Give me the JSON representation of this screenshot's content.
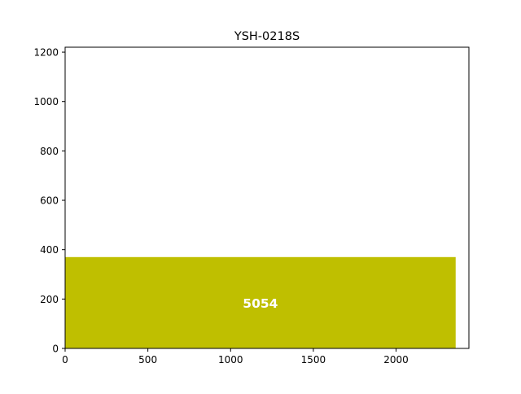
{
  "chart_data": {
    "type": "bar",
    "title": "YSH-0218S",
    "xlabel": "",
    "ylabel": "",
    "xlim": [
      0,
      2440
    ],
    "ylim": [
      0,
      1220
    ],
    "x_ticks": [
      0,
      500,
      1000,
      1500,
      2000
    ],
    "y_ticks": [
      0,
      200,
      400,
      600,
      800,
      1000,
      1200
    ],
    "bars": [
      {
        "label": "5054",
        "x_start": 0,
        "x_end": 2360,
        "y_start": 0,
        "y_end": 370,
        "color": "#bfbf00",
        "label_color": "#ffffff"
      }
    ],
    "grid": false,
    "legend": false
  }
}
